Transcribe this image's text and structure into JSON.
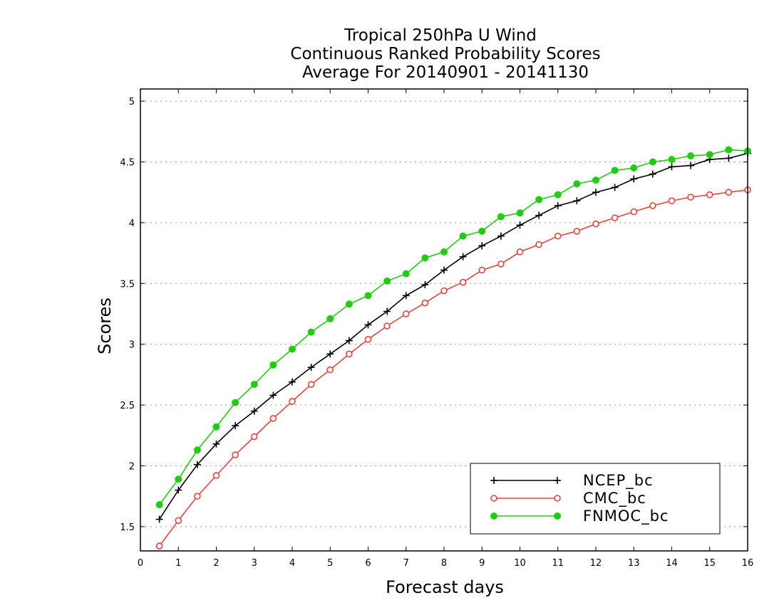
{
  "chart_data": {
    "type": "line",
    "title": [
      "Tropical 250hPa U Wind",
      "Continuous Ranked Probability Scores",
      "Average For 20140901 - 20141130"
    ],
    "xlabel": "Forecast days",
    "ylabel": "Scores",
    "xlim": [
      0,
      16
    ],
    "ylim": [
      1.3,
      5.1
    ],
    "x_ticks": [
      "0",
      "1",
      "2",
      "3",
      "4",
      "5",
      "6",
      "7",
      "8",
      "9",
      "10",
      "11",
      "12",
      "13",
      "14",
      "15",
      "16"
    ],
    "y_ticks": [
      "1.5",
      "2",
      "2.5",
      "3",
      "3.5",
      "4",
      "4.5",
      "5"
    ],
    "grid": "horizontal dotted",
    "legend_position": "bottom-right",
    "x": [
      0.5,
      1,
      1.5,
      2,
      2.5,
      3,
      3.5,
      4,
      4.5,
      5,
      5.5,
      6,
      6.5,
      7,
      7.5,
      8,
      8.5,
      9,
      9.5,
      10,
      10.5,
      11,
      11.5,
      12,
      12.5,
      13,
      13.5,
      14,
      14.5,
      15,
      15.5,
      16
    ],
    "series": [
      {
        "name": "NCEP_bc",
        "color": "#000000",
        "marker": "plus",
        "values": [
          1.56,
          1.8,
          2.01,
          2.18,
          2.33,
          2.45,
          2.58,
          2.69,
          2.81,
          2.92,
          3.03,
          3.16,
          3.27,
          3.4,
          3.49,
          3.61,
          3.72,
          3.81,
          3.89,
          3.98,
          4.06,
          4.14,
          4.18,
          4.25,
          4.29,
          4.36,
          4.4,
          4.46,
          4.47,
          4.52,
          4.53,
          4.57
        ]
      },
      {
        "name": "CMC_bc",
        "color": "#e8443d",
        "marker": "open-circle",
        "values": [
          1.34,
          1.55,
          1.75,
          1.92,
          2.09,
          2.24,
          2.39,
          2.53,
          2.67,
          2.79,
          2.92,
          3.04,
          3.15,
          3.25,
          3.34,
          3.44,
          3.51,
          3.61,
          3.66,
          3.76,
          3.82,
          3.89,
          3.93,
          3.99,
          4.04,
          4.09,
          4.14,
          4.18,
          4.21,
          4.23,
          4.25,
          4.27
        ]
      },
      {
        "name": "FNMOC_bc",
        "color": "#22cc11",
        "marker": "filled-circle",
        "values": [
          1.68,
          1.89,
          2.13,
          2.32,
          2.52,
          2.67,
          2.83,
          2.96,
          3.1,
          3.21,
          3.33,
          3.4,
          3.52,
          3.58,
          3.71,
          3.76,
          3.89,
          3.93,
          4.05,
          4.08,
          4.19,
          4.23,
          4.32,
          4.35,
          4.43,
          4.45,
          4.5,
          4.52,
          4.55,
          4.56,
          4.6,
          4.59
        ]
      }
    ]
  }
}
